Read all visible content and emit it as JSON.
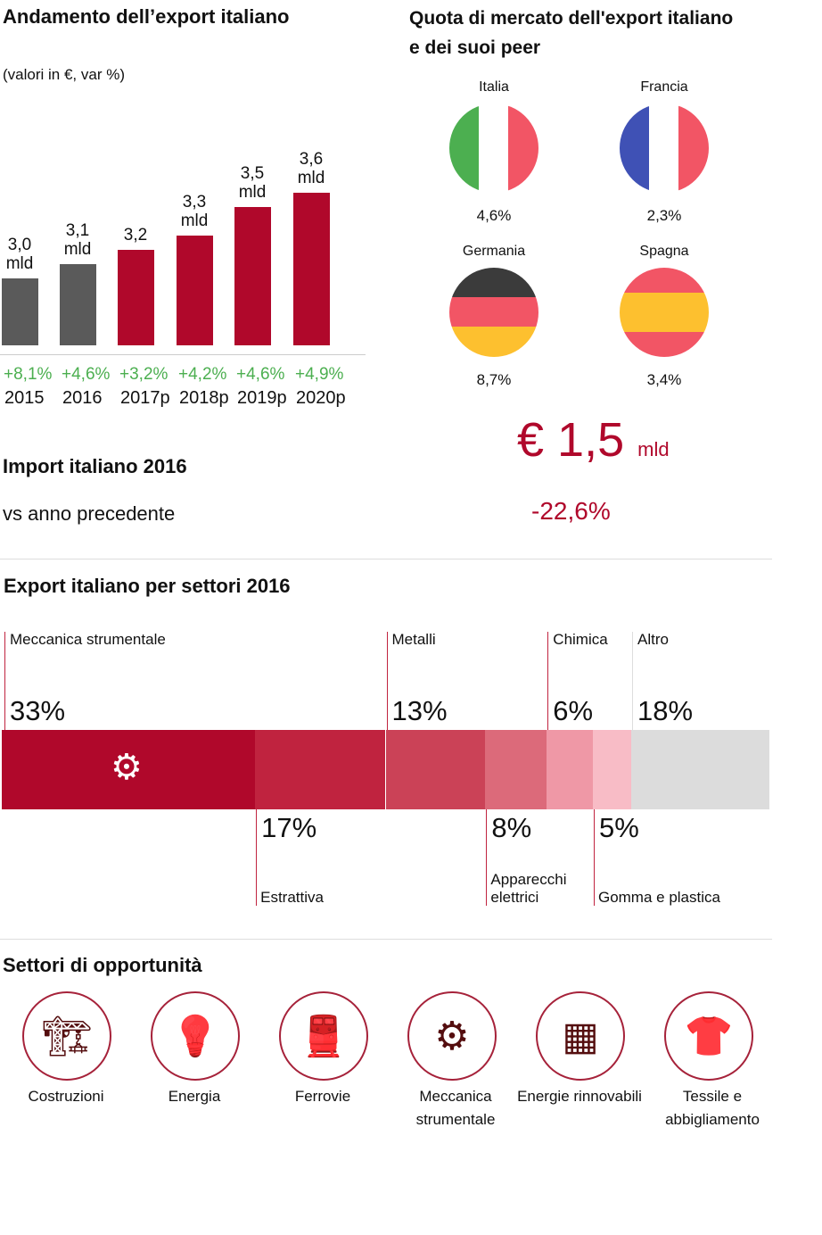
{
  "export_chart": {
    "title": "Andamento dell’export italiano",
    "subtitle": "(valori in €, var %)"
  },
  "chart_data": [
    {
      "type": "bar",
      "title": "Andamento dell’export italiano",
      "subtitle": "(valori in €, var %)",
      "categories": [
        "2015",
        "2016",
        "2017p",
        "2018p",
        "2019p",
        "2020p"
      ],
      "values": [
        3.0,
        3.1,
        3.2,
        3.3,
        3.5,
        3.6
      ],
      "value_labels": [
        "3,0\nmld",
        "3,1\nmld",
        "3,2",
        "3,3\nmld",
        "3,5\nmld",
        "3,6\nmld"
      ],
      "growth": [
        "+8,1%",
        "+4,6%",
        "+3,2%",
        "+4,2%",
        "+4,6%",
        "+4,9%"
      ],
      "colors": [
        "#5a5a5a",
        "#5a5a5a",
        "#b0082b",
        "#b0082b",
        "#b0082b",
        "#b0082b"
      ],
      "growth_color": "#4caf50"
    },
    {
      "type": "bar",
      "title": "Export italiano per settori 2016",
      "stacked": true,
      "segments": [
        {
          "name": "Meccanica strumentale",
          "value": 33,
          "label": "33%",
          "color": "#b0082b",
          "pos": "top"
        },
        {
          "name": "Estrattiva",
          "value": 17,
          "label": "17%",
          "color": "#c0233f",
          "pos": "bottom"
        },
        {
          "name": "Metalli",
          "value": 13,
          "label": "13%",
          "color": "#cb4257",
          "pos": "top"
        },
        {
          "name": "Apparecchi elettrici",
          "value": 8,
          "label": "8%",
          "color": "#dc6a7a",
          "pos": "bottom"
        },
        {
          "name": "Chimica",
          "value": 6,
          "label": "6%",
          "color": "#ef98a6",
          "pos": "top"
        },
        {
          "name": "Gomma e plastica",
          "value": 5,
          "label": "5%",
          "color": "#f8bcc6",
          "pos": "bottom"
        },
        {
          "name": "Altro",
          "value": 18,
          "label": "18%",
          "color": "#dcdcdc",
          "pos": "top"
        }
      ]
    }
  ],
  "market_share": {
    "title": "Quota di mercato dell'export italiano\ne dei suoi peer",
    "countries": [
      {
        "name": "Italia",
        "value": "4,6%",
        "flag": "italy"
      },
      {
        "name": "Francia",
        "value": "2,3%",
        "flag": "france"
      },
      {
        "name": "Germania",
        "value": "8,7%",
        "flag": "germany"
      },
      {
        "name": "Spagna",
        "value": "3,4%",
        "flag": "spain"
      }
    ]
  },
  "import": {
    "title": "Import italiano 2016",
    "vs_label": "vs anno precedente",
    "amount": "€ 1,5",
    "unit": "mld",
    "change": "-22,6%",
    "color": "#b0082b"
  },
  "opportunities": {
    "title": "Settori di opportunità",
    "items": [
      {
        "label": "Costruzioni",
        "icon": "crane-icon"
      },
      {
        "label": "Energia",
        "icon": "lightbulb-icon"
      },
      {
        "label": "Ferrovie",
        "icon": "train-icon"
      },
      {
        "label": "Meccanica\nstrumentale",
        "icon": "gears-icon"
      },
      {
        "label": "Energie rinnovabili",
        "icon": "solar-panel-icon"
      },
      {
        "label": "Tessile e\nabbigliamento",
        "icon": "clothes-hanger-icon"
      }
    ]
  }
}
